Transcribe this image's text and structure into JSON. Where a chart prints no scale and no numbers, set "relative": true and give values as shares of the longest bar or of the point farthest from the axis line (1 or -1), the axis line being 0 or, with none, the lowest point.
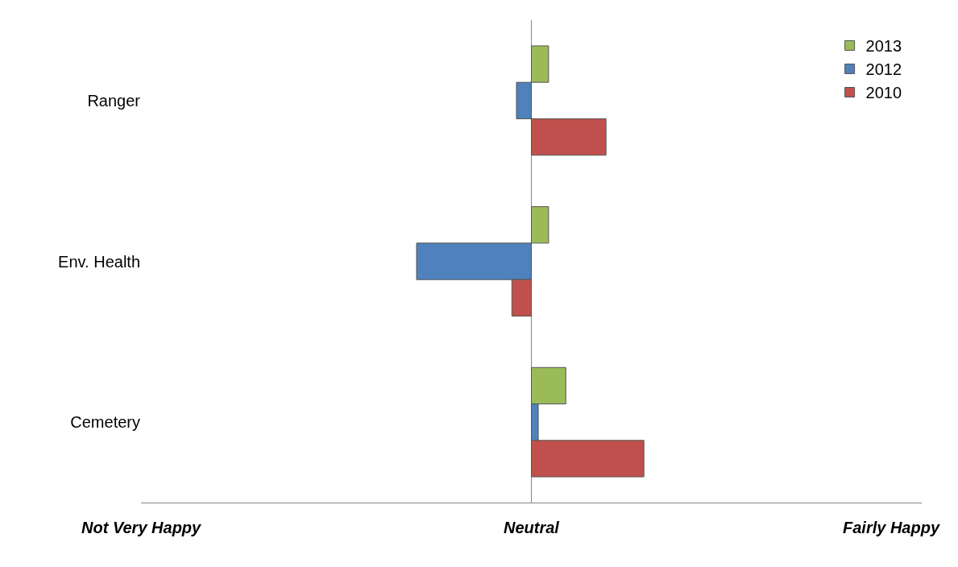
{
  "chart_data": {
    "type": "bar",
    "orientation": "horizontal",
    "relative": true,
    "categories": [
      "Ranger",
      "Env. Health",
      "Cemetery"
    ],
    "series": [
      {
        "name": "2013",
        "color": "#9bbb59",
        "values": [
          0.15,
          0.15,
          0.3
        ]
      },
      {
        "name": "2012",
        "color": "#4f81bd",
        "values": [
          -0.13,
          -1,
          0.06
        ]
      },
      {
        "name": "2010",
        "color": "#c0504d",
        "values": [
          0.65,
          -0.17,
          0.98
        ]
      }
    ],
    "annotations": [
      "Not Very Happy",
      "Neutral",
      "Fairly Happy"
    ],
    "legend": "top right"
  }
}
